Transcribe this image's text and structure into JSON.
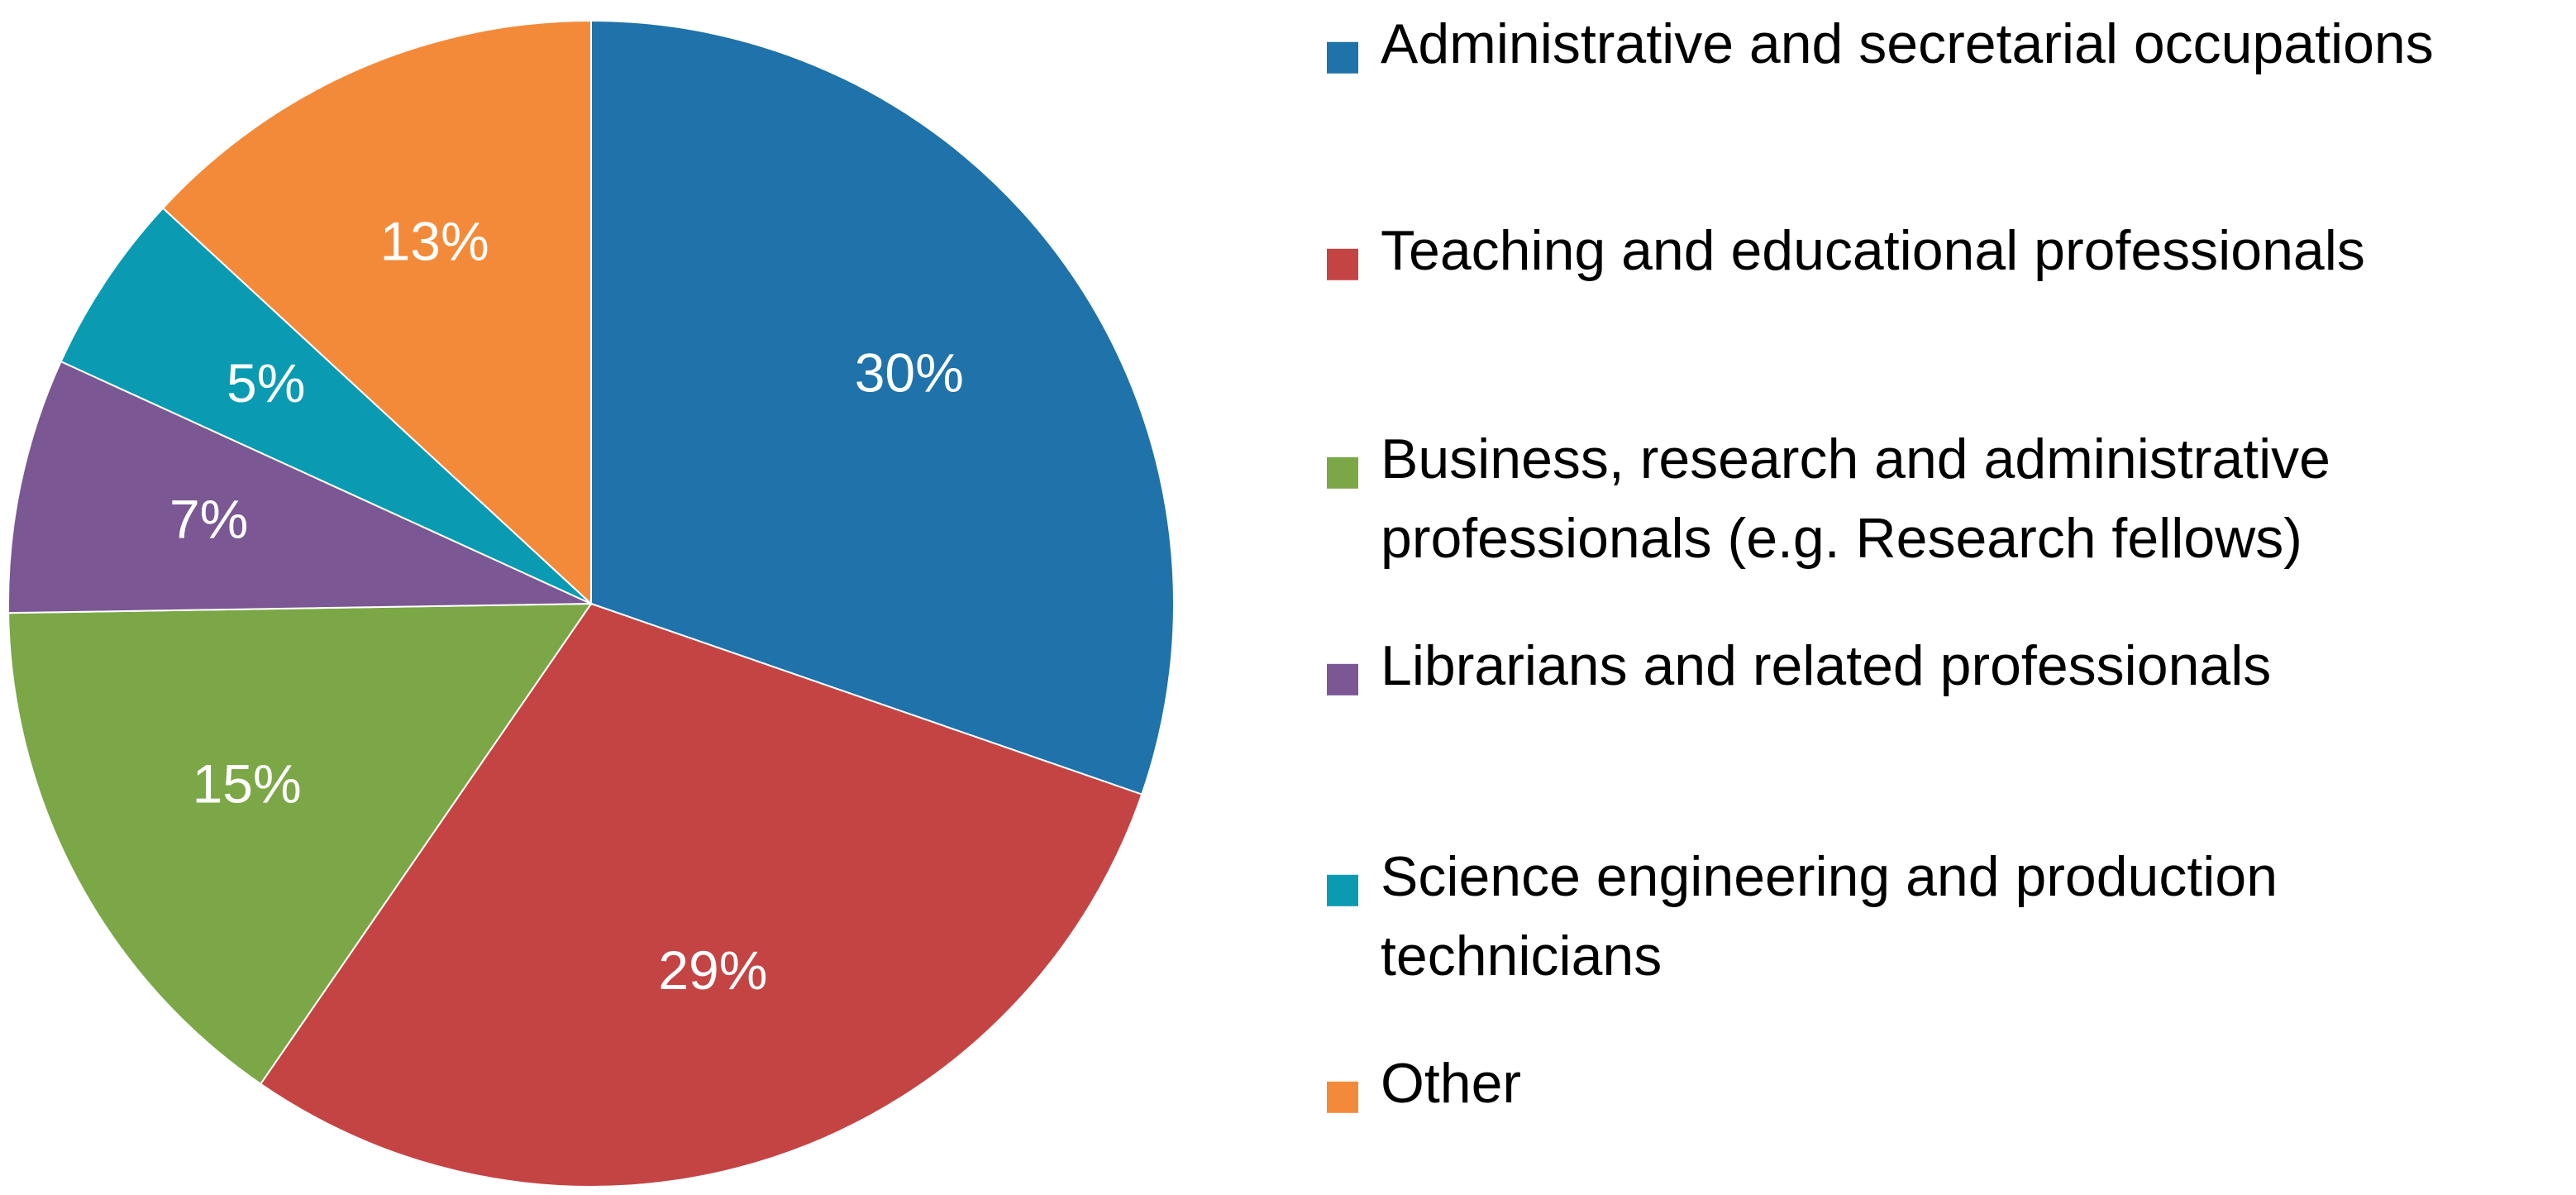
{
  "chart_data": {
    "type": "pie",
    "title": "",
    "start": "top",
    "direction": "clockwise",
    "legend_position": "right",
    "series": [
      {
        "name": "Administrative and secretarial occupations",
        "legend_lines": [
          "Administrative and secretarial occupations"
        ],
        "value": 30,
        "label": "30%",
        "color": "#1F72AA"
      },
      {
        "name": "Teaching and educational professionals",
        "legend_lines": [
          "Teaching and educational professionals"
        ],
        "value": 29,
        "label": "29%",
        "color": "#C44444"
      },
      {
        "name": "Business, research and administrative professionals (e.g. Research fellows)",
        "legend_lines": [
          "Business, research and administrative",
          "professionals (e.g. Research fellows)"
        ],
        "value": 15,
        "label": "15%",
        "color": "#7BA747"
      },
      {
        "name": "Librarians and related professionals",
        "legend_lines": [
          "Librarians and related professionals"
        ],
        "value": 7,
        "label": "7%",
        "color": "#7B5794"
      },
      {
        "name": "Science engineering and production technicians",
        "legend_lines": [
          "Science engineering and production",
          "technicians"
        ],
        "value": 5,
        "label": "5%",
        "color": "#0A9BB2"
      },
      {
        "name": "Other",
        "legend_lines": [
          "Other"
        ],
        "value": 13,
        "label": "13%",
        "color": "#F38A3A"
      }
    ]
  }
}
